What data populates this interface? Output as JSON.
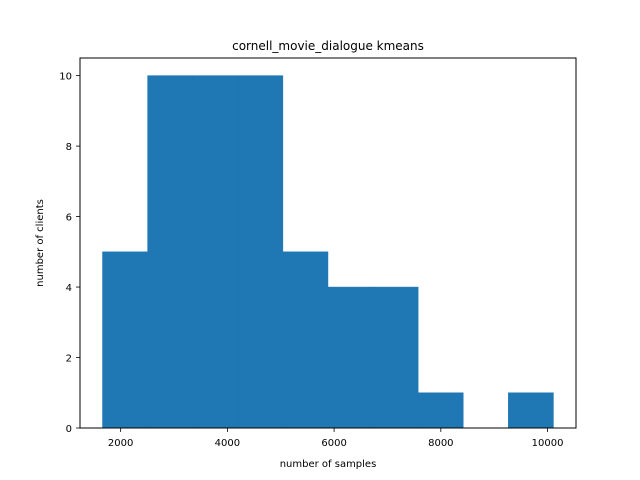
{
  "chart_data": {
    "type": "bar",
    "title": "cornell_movie_dialogue kmeans",
    "xlabel": "number of samples",
    "ylabel": "number of clients",
    "bins": [
      {
        "start": 1660,
        "end": 2505,
        "count": 5
      },
      {
        "start": 2505,
        "end": 3350,
        "count": 10
      },
      {
        "start": 3350,
        "end": 4195,
        "count": 10
      },
      {
        "start": 4195,
        "end": 5040,
        "count": 10
      },
      {
        "start": 5040,
        "end": 5885,
        "count": 5
      },
      {
        "start": 5885,
        "end": 6730,
        "count": 4
      },
      {
        "start": 6730,
        "end": 7575,
        "count": 4
      },
      {
        "start": 7575,
        "end": 8420,
        "count": 1
      },
      {
        "start": 8420,
        "end": 9265,
        "count": 0
      },
      {
        "start": 9265,
        "end": 10110,
        "count": 1
      }
    ],
    "xlim": [
      1238,
      10533
    ],
    "ylim": [
      0,
      10.5
    ],
    "xticks": [
      2000,
      4000,
      6000,
      8000,
      10000
    ],
    "yticks": [
      0,
      2,
      4,
      6,
      8,
      10
    ],
    "bar_color": "#1f77b4",
    "grid": false
  }
}
